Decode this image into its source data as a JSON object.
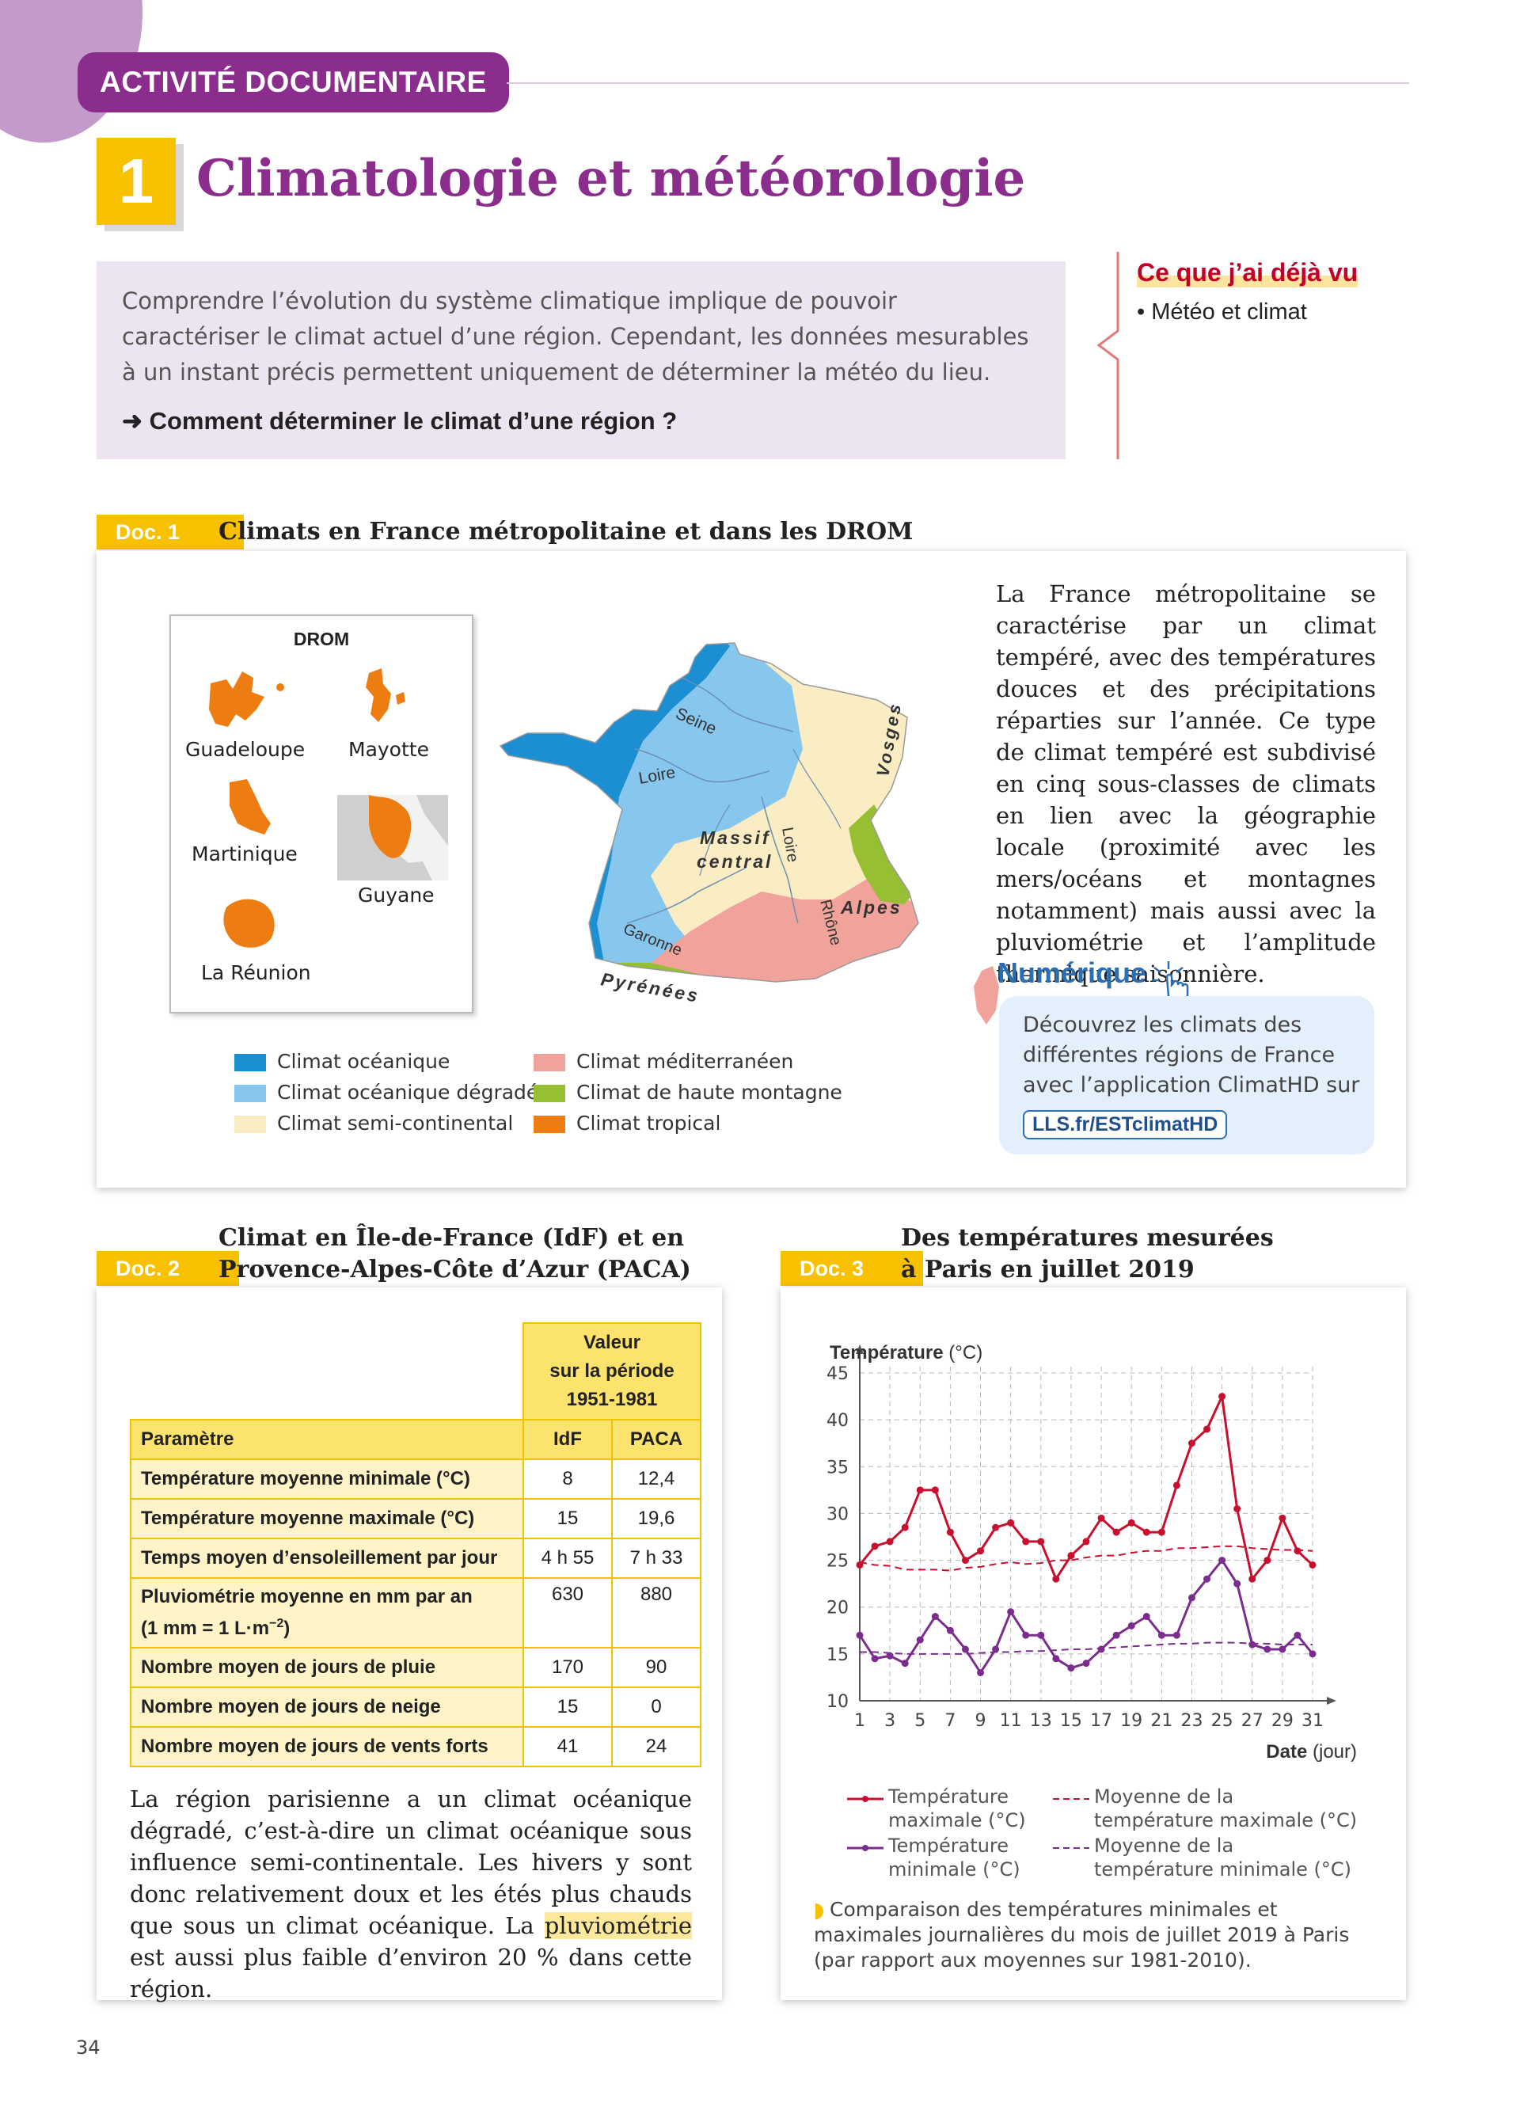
{
  "header": {
    "tag": "ACTIVITÉ DOCUMENTAIRE",
    "number": "1",
    "title": "Climatologie et météorologie"
  },
  "intro": {
    "text": "Comprendre l’évolution du système climatique implique de pouvoir caractériser le climat actuel d’une région. Cependant, les données mesurables à un instant précis permettent uniquement de déterminer la météo du lieu.",
    "question": "➜  Comment déterminer le climat d’une région ?"
  },
  "sidebar": {
    "title": "Ce que j’ai déjà vu",
    "items": [
      "• Météo et climat"
    ]
  },
  "doc1": {
    "tab": "Doc. 1",
    "title": "Climats en France métropolitaine et dans les DROM",
    "drom": {
      "title": "DROM",
      "labels": [
        "Guadeloupe",
        "Mayotte",
        "Martinique",
        "Guyane",
        "La Réunion"
      ]
    },
    "map_labels": [
      "Seine",
      "Loire",
      "Vosges",
      "Massif",
      "central",
      "Loire",
      "Alpes",
      "Rhône",
      "Garonne",
      "Pyrénées"
    ],
    "legend": [
      {
        "label": "Climat océanique",
        "color": "#1b8fd1"
      },
      {
        "label": "Climat océanique dégradé",
        "color": "#87c7ee"
      },
      {
        "label": "Climat semi-continental",
        "color": "#fbedc3"
      },
      {
        "label": "Climat méditerranéen",
        "color": "#f1a39b"
      },
      {
        "label": "Climat de haute montagne",
        "color": "#97bf33"
      },
      {
        "label": "Climat tropical",
        "color": "#ee7d11"
      }
    ],
    "text": "La France métropolitaine se caractérise par un climat tempéré, avec des températures douces et des précipitations réparties sur l’année. Ce type de climat tempéré est subdivisé en cinq sous-classes de climats en lien avec la géographie locale (proximité avec les mers/océans et montagnes notamment) mais aussi avec la pluviométrie et l’amplitude thermique saisonnière.",
    "numerique": {
      "title": "Numérique",
      "text": "Découvrez les climats des différentes régions de France avec l’application ClimatHD sur",
      "link": "LLS.fr/ESTclimatHD"
    }
  },
  "doc2": {
    "tab": "Doc. 2",
    "title_line1": "Climat en Île-de-France (IdF) et en",
    "title_line2": "Provence-Alpes-Côte d’Azur (PACA)",
    "table": {
      "group_header": [
        "Valeur",
        "sur la période",
        "1951-1981"
      ],
      "headers": [
        "Paramètre",
        "IdF",
        "PACA"
      ],
      "rows": [
        [
          "Température moyenne minimale (°C)",
          "8",
          "12,4"
        ],
        [
          "Température moyenne maximale (°C)",
          "15",
          "19,6"
        ],
        [
          "Temps moyen d’ensoleillement par jour",
          "4 h 55",
          "7 h 33"
        ],
        [
          "Pluviométrie moyenne en mm par an",
          "630",
          "880"
        ],
        [
          "Nombre moyen de jours de pluie",
          "170",
          "90"
        ],
        [
          "Nombre moyen de jours de neige",
          "15",
          "0"
        ],
        [
          "Nombre moyen de jours de vents forts",
          "41",
          "24"
        ]
      ],
      "row4_sub": "(1 mm = 1 L·m",
      "row4_sup": "−2",
      "row4_end": ")"
    },
    "text_before": "La région parisienne a un climat océanique dégradé, c’est-à-dire un climat océanique sous influence semi-continentale. Les hivers y sont donc relativement doux et les étés plus chauds que sous un climat océanique. La ",
    "text_highlight": "pluviométrie",
    "text_after": " est aussi plus faible d’environ 20 % dans cette région."
  },
  "doc3": {
    "tab": "Doc. 3",
    "title_line1": "Des températures mesurées",
    "title_line2": "à Paris en juillet 2019",
    "caption": "Comparaison des températures minimales et maximales journalières du mois de juillet 2019 à Paris (par rapport aux moyennes sur 1981-2010).",
    "legend": [
      {
        "label1": "Température",
        "label2": "maximale (°C)"
      },
      {
        "label1": "Moyenne de la",
        "label2": "température maximale (°C)"
      },
      {
        "label1": "Température",
        "label2": "minimale (°C)"
      },
      {
        "label1": "Moyenne de la",
        "label2": "température minimale (°C)"
      }
    ]
  },
  "chart_data": {
    "type": "line",
    "xlabel_bold": "Date",
    "xlabel_unit": " (jour)",
    "ylabel_bold": "Température",
    "ylabel_unit": " (°C)",
    "xlim": [
      1,
      31
    ],
    "ylim": [
      10,
      45
    ],
    "x_ticks": [
      1,
      3,
      5,
      7,
      9,
      11,
      13,
      15,
      17,
      19,
      21,
      23,
      25,
      27,
      29,
      31
    ],
    "y_ticks": [
      10,
      15,
      20,
      25,
      30,
      35,
      40,
      45
    ],
    "grid": true,
    "x": [
      1,
      2,
      3,
      4,
      5,
      6,
      7,
      8,
      9,
      10,
      11,
      12,
      13,
      14,
      15,
      16,
      17,
      18,
      19,
      20,
      21,
      22,
      23,
      24,
      25,
      26,
      27,
      28,
      29,
      30,
      31
    ],
    "series": [
      {
        "name": "Température maximale (°C)",
        "color": "#c8102e",
        "style": "solid",
        "values": [
          24.5,
          26.5,
          27,
          28.5,
          32.5,
          32.5,
          28,
          25,
          26,
          28.5,
          29,
          27,
          27,
          23,
          25.5,
          27,
          29.5,
          28,
          29,
          28,
          28,
          33,
          37.5,
          39,
          42.5,
          30.5,
          23,
          25,
          29.5,
          26,
          24.5
        ]
      },
      {
        "name": "Moyenne de la température maximale (°C)",
        "color": "#c8102e",
        "style": "dashed",
        "values": [
          24.8,
          24.5,
          24.4,
          24,
          24,
          24,
          23.9,
          24.2,
          24.3,
          24.6,
          24.8,
          24.6,
          24.7,
          25,
          25,
          25.3,
          25.5,
          25.5,
          25.8,
          26,
          26,
          26.3,
          26.3,
          26.4,
          26.5,
          26.5,
          26.3,
          26.2,
          26.1,
          26.1,
          26
        ]
      },
      {
        "name": "Température minimale (°C)",
        "color": "#7b2d8e",
        "style": "solid",
        "values": [
          17,
          14.5,
          14.8,
          14,
          16.5,
          19,
          17.5,
          15.5,
          13,
          15.5,
          19.5,
          17,
          17,
          14.5,
          13.5,
          14,
          15.5,
          17,
          18,
          19,
          17,
          17,
          21,
          23,
          25,
          22.5,
          16,
          15.5,
          15.5,
          17,
          15
        ]
      },
      {
        "name": "Moyenne de la température minimale (°C)",
        "color": "#7b2d8e",
        "style": "dashed",
        "values": [
          15.2,
          15.2,
          15.1,
          15,
          15,
          15,
          15,
          15,
          15.1,
          15.2,
          15.2,
          15.3,
          15.3,
          15.4,
          15.5,
          15.5,
          15.6,
          15.7,
          15.8,
          15.9,
          16,
          16.1,
          16.1,
          16.2,
          16.2,
          16.2,
          16.1,
          16.1,
          16,
          16,
          16
        ]
      }
    ]
  },
  "page_number": "34"
}
